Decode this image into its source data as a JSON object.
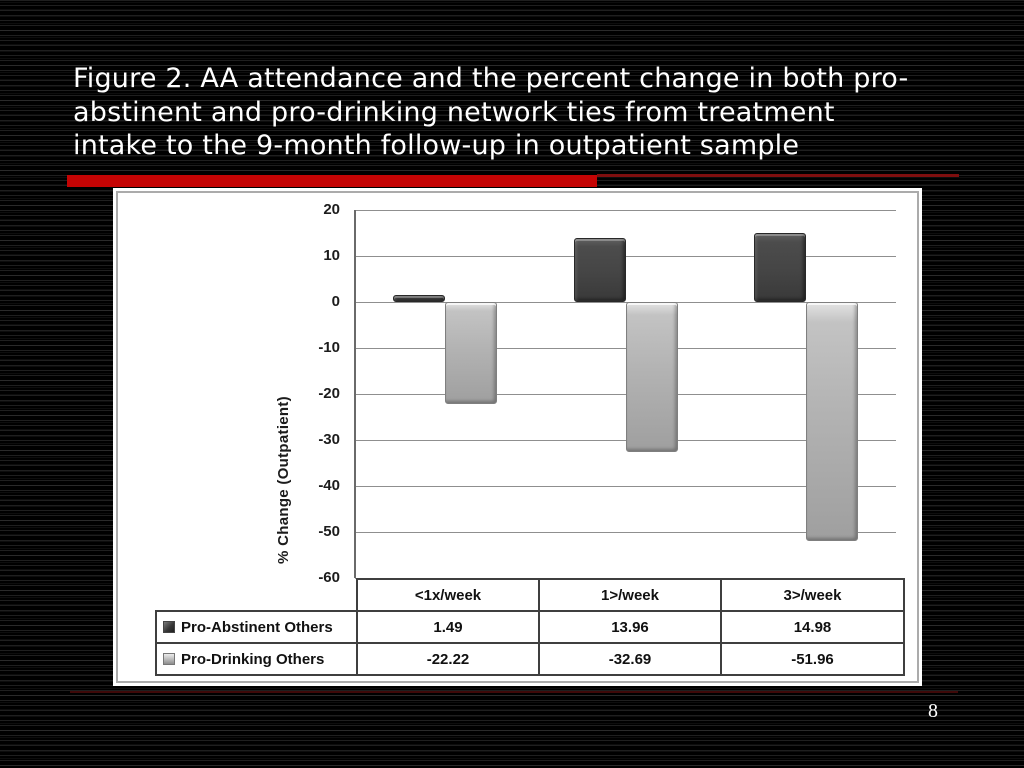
{
  "slide": {
    "title_lines": [
      "Figure 2. AA attendance and the percent change in both pro-",
      "abstinent and pro-drinking network ties from treatment",
      "intake to the 9-month follow-up in outpatient sample"
    ],
    "page_number": "8",
    "accent_color": "#c40404"
  },
  "chart_data": {
    "type": "bar",
    "title": "",
    "xlabel": "",
    "ylabel": "% Change (Outpatient)",
    "ylim": [
      -60,
      20
    ],
    "yticks": [
      20,
      10,
      0,
      -10,
      -20,
      -30,
      -40,
      -50,
      -60
    ],
    "grid": true,
    "legend_position": "table-left",
    "categories": [
      "<1x/week",
      "1>/week",
      "3>/week"
    ],
    "series": [
      {
        "name": "Pro-Abstinent Others",
        "values": [
          1.49,
          13.96,
          14.98
        ],
        "color": "#454545"
      },
      {
        "name": "Pro-Drinking Others",
        "values": [
          -22.22,
          -32.69,
          -51.96
        ],
        "color": "#b3b3b3"
      }
    ]
  }
}
